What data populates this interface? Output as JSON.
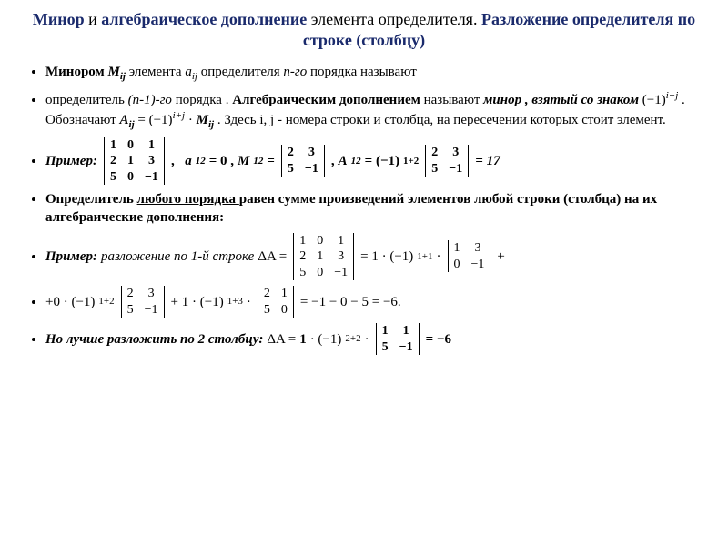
{
  "colors": {
    "title_emph": "#1a2a6c",
    "text": "#000000",
    "bg": "#ffffff"
  },
  "title": {
    "part1_em": "Минор",
    "part1_plain": " и ",
    "part2_em": "алгебраическое дополнение",
    "part2_plain": " элемента определителя.  ",
    "part3_em": "Разложение определителя по строке (столбцу)"
  },
  "b1": {
    "lead": "Минором ",
    "M": "M",
    "ij": "ij",
    "mid1": " элемента ",
    "a": "a",
    "mid2": "  определителя  ",
    "ngo": "n-го",
    "tail": " порядка называют"
  },
  "b2": {
    "p1": "определитель ",
    "n1": "(n-1)-го",
    "p2": " порядка . ",
    "alg": "Алгебраическим дополнением",
    "p3": " называют ",
    "minor": "минор , взятый со знаком",
    "neg1": " (−1)",
    "ipj": "i+j",
    "p4": ".  Обозначают ",
    "A": "A",
    "eq": " =  (−1)",
    "dot": " · ",
    "M": "M",
    "p5": ".  Здесь i, j - номера строки и столбца, на пересечении которых стоит элемент."
  },
  "b3": {
    "label": "Пример:",
    "m3": {
      "r1c1": "1",
      "r1c2": "0",
      "r1c3": "1",
      "r2c1": "2",
      "r2c2": "1",
      "r2c3": "3",
      "r3c1": "5",
      "r3c2": "0",
      "r3c3": "−1"
    },
    "a12": "a",
    "s12": "12",
    "a_eq": "= 0 ,   ",
    "M12": "M",
    "Meq": "=",
    "m2": {
      "r1c1": "2",
      "r1c2": "3",
      "r2c1": "5",
      "r2c2": "−1"
    },
    "comma": ",   ",
    "A12": "A",
    "Aexpr1": " = (−1)",
    "Aexp": "1+2",
    "res": "= 17"
  },
  "b4": {
    "p1": "Определитель ",
    "u": "любого порядка ",
    "p2": "равен сумме произведений элементов любой строки (столбца) на их алгебраические дополнения:"
  },
  "b5": {
    "label": "Пример:",
    "txt": " разложение по 1-й строке ",
    "dA": "ΔA  =",
    "m3": {
      "r1c1": "1",
      "r1c2": "0",
      "r1c3": "1",
      "r2c1": "2",
      "r2c2": "1",
      "r2c3": "3",
      "r3c1": "5",
      "r3c2": "0",
      "r3c3": "−1"
    },
    "eq1": "= 1 · (−1)",
    "e1": "1+1",
    "dot": " · ",
    "m2a": {
      "r1c1": "1",
      "r1c2": "3",
      "r2c1": "0",
      "r2c2": "−1"
    },
    "plus": "+"
  },
  "b6": {
    "p1": "+0 · (−1)",
    "e1": "1+2",
    "m2a": {
      "r1c1": "2",
      "r1c2": "3",
      "r2c1": "5",
      "r2c2": "−1"
    },
    "p2": " + 1 · (−1)",
    "e2": "1+3",
    "dot": " · ",
    "m2b": {
      "r1c1": "2",
      "r1c2": "1",
      "r2c1": "5",
      "r2c2": "0"
    },
    "res": " = −1 − 0 − 5 = −6."
  },
  "b7": {
    "p1": "Но лучше разложить по 2 столбцу:",
    "p2": "   ΔA = ",
    "one": "1",
    "p3": " · (−1)",
    "e": "2+2",
    "dot": " · ",
    "m2": {
      "r1c1": "1",
      "r1c2": "1",
      "r2c1": "5",
      "r2c2": "−1"
    },
    "res": "= −6"
  }
}
